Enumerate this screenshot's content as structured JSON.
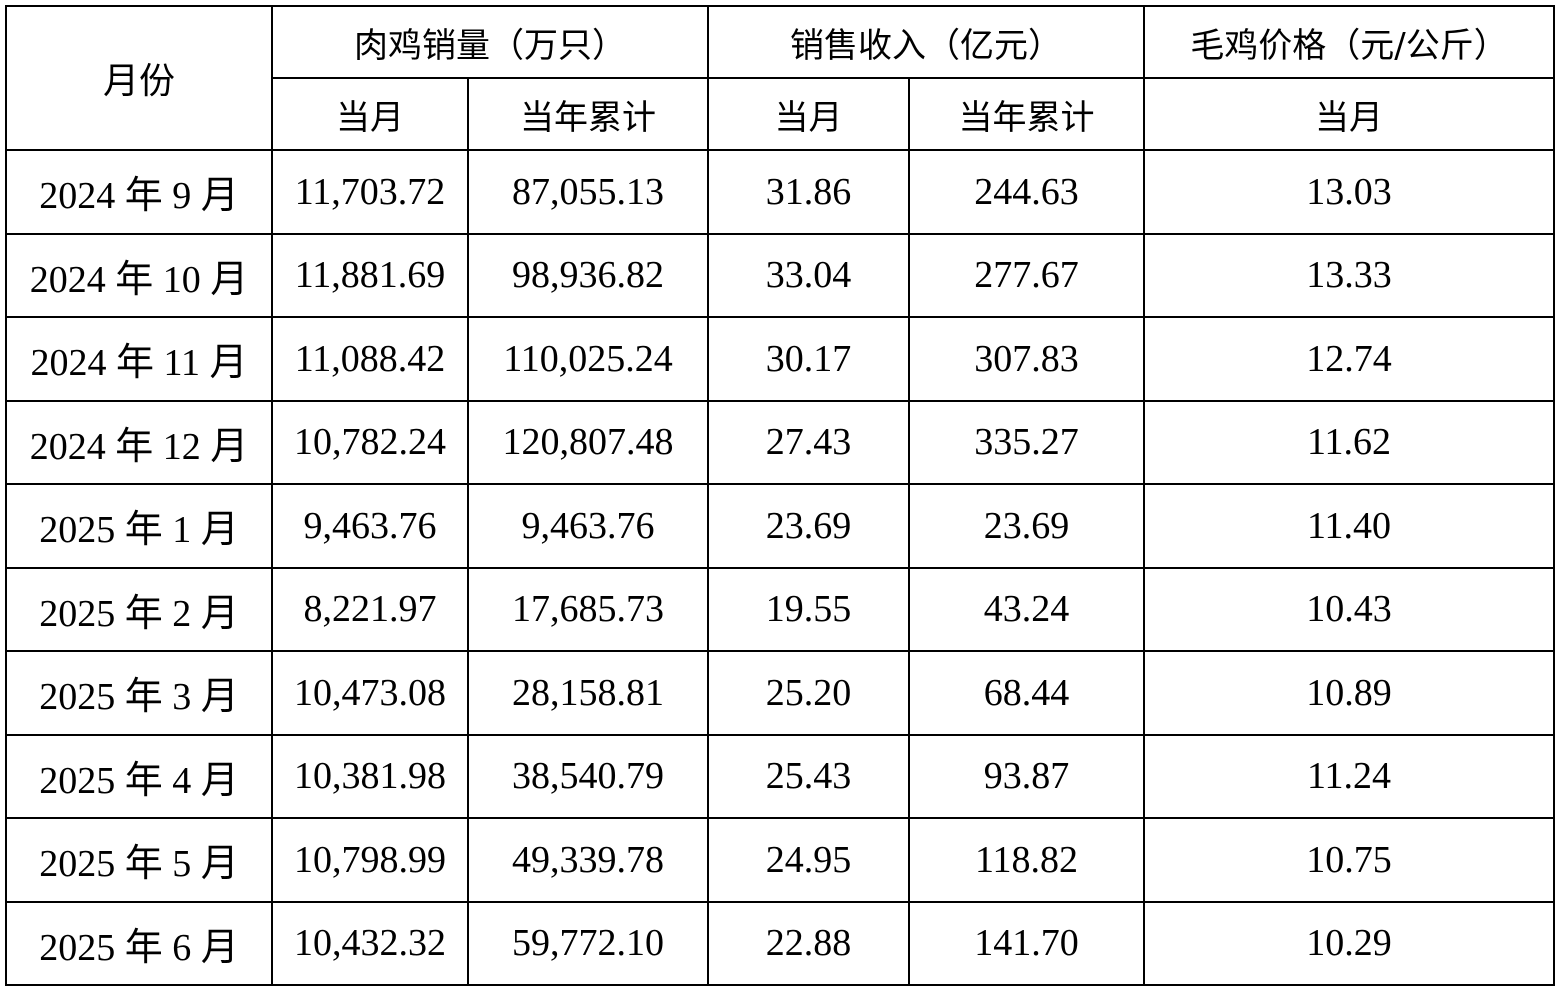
{
  "headers": {
    "month": "月份",
    "group1": "肉鸡销量（万只）",
    "group2": "销售收入（亿元）",
    "group3": "毛鸡价格（元/公斤）",
    "sub_current": "当月",
    "sub_cumulative": "当年累计"
  },
  "rows": [
    [
      "2024 年 9 月",
      "11,703.72",
      "87,055.13",
      "31.86",
      "244.63",
      "13.03"
    ],
    [
      "2024 年 10 月",
      "11,881.69",
      "98,936.82",
      "33.04",
      "277.67",
      "13.33"
    ],
    [
      "2024 年 11 月",
      "11,088.42",
      "110,025.24",
      "30.17",
      "307.83",
      "12.74"
    ],
    [
      "2024 年 12 月",
      "10,782.24",
      "120,807.48",
      "27.43",
      "335.27",
      "11.62"
    ],
    [
      "2025 年 1 月",
      "9,463.76",
      "9,463.76",
      "23.69",
      "23.69",
      "11.40"
    ],
    [
      "2025 年 2 月",
      "8,221.97",
      "17,685.73",
      "19.55",
      "43.24",
      "10.43"
    ],
    [
      "2025 年 3 月",
      "10,473.08",
      "28,158.81",
      "25.20",
      "68.44",
      "10.89"
    ],
    [
      "2025 年 4 月",
      "10,381.98",
      "38,540.79",
      "25.43",
      "93.87",
      "11.24"
    ],
    [
      "2025 年 5 月",
      "10,798.99",
      "49,339.78",
      "24.95",
      "118.82",
      "10.75"
    ],
    [
      "2025 年 6 月",
      "10,432.32",
      "59,772.10",
      "22.88",
      "141.70",
      "10.29"
    ]
  ]
}
